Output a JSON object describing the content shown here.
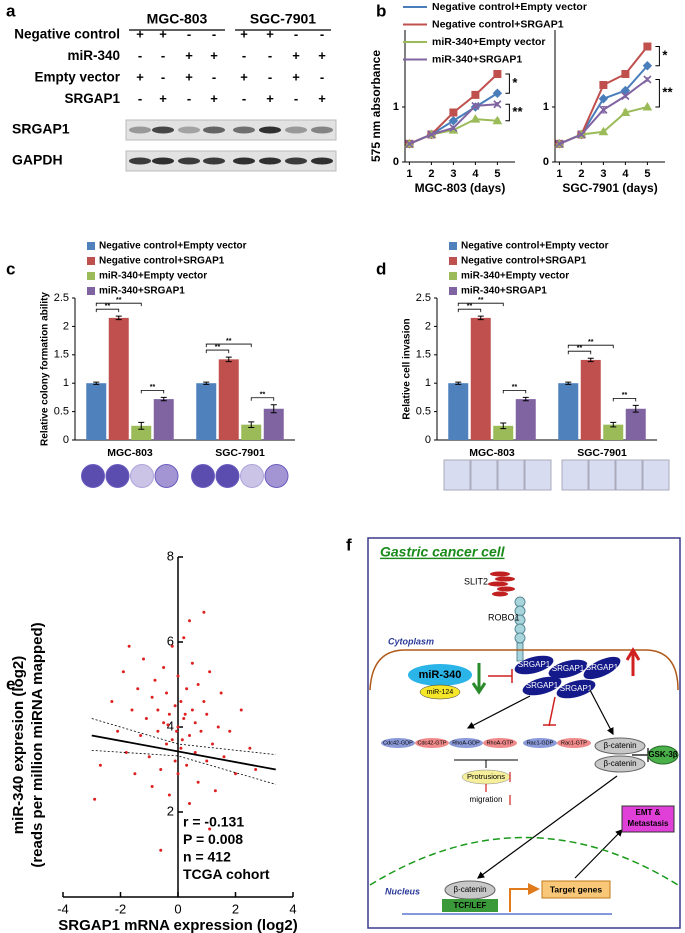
{
  "panel_labels": [
    "a",
    "b",
    "c",
    "d",
    "e",
    "f"
  ],
  "blot": {
    "cell_lines": [
      "MGC-803",
      "SGC-7901"
    ],
    "conditions": [
      {
        "label": "Negative control",
        "signs": [
          "+",
          "+",
          "-",
          "-",
          "+",
          "+",
          "-",
          "-"
        ]
      },
      {
        "label": "miR-340",
        "signs": [
          "-",
          "-",
          "+",
          "+",
          "-",
          "-",
          "+",
          "+"
        ]
      },
      {
        "label": "Empty vector",
        "signs": [
          "+",
          "-",
          "+",
          "-",
          "+",
          "-",
          "+",
          "-"
        ]
      },
      {
        "label": "SRGAP1",
        "signs": [
          "-",
          "+",
          "-",
          "+",
          "-",
          "+",
          "-",
          "+"
        ]
      }
    ],
    "bands": [
      "SRGAP1",
      "GAPDH"
    ]
  },
  "chart_data": [
    {
      "type": "line",
      "xlabel": "MGC-803 (days)",
      "ylabel": "575 nm absorbance",
      "x": [
        1,
        2,
        3,
        4,
        5
      ],
      "xlim": [
        0.8,
        5.8
      ],
      "xticks": [
        1,
        2,
        3,
        4,
        5
      ],
      "ylim": [
        0,
        2.4
      ],
      "yticks": [
        0,
        1
      ],
      "legend": "top",
      "series": [
        {
          "name": "Negative control+Empty vector",
          "color": "#4a7ebb",
          "values": [
            0.33,
            0.5,
            0.75,
            1.0,
            1.25
          ],
          "errors": [
            0.02,
            0.02,
            0.04,
            0.04,
            0.05
          ]
        },
        {
          "name": "Negative control+SRGAP1",
          "color": "#c0504d",
          "values": [
            0.33,
            0.5,
            0.9,
            1.22,
            1.6
          ],
          "errors": [
            0.02,
            0.02,
            0.06,
            0.04,
            0.03
          ]
        },
        {
          "name": "miR-340+Empty vector",
          "color": "#9bbb59",
          "values": [
            0.33,
            0.5,
            0.58,
            0.78,
            0.75
          ],
          "errors": [
            0.02,
            0.02,
            0.03,
            0.03,
            0.04
          ]
        },
        {
          "name": "miR-340+SRGAP1",
          "color": "#8064a2",
          "values": [
            0.33,
            0.5,
            0.62,
            1.02,
            1.05
          ],
          "errors": [
            0.02,
            0.02,
            0.03,
            0.04,
            0.03
          ]
        }
      ],
      "significance": [
        "*",
        "**"
      ]
    },
    {
      "type": "line",
      "xlabel": "SGC-7901 (days)",
      "x": [
        1,
        2,
        3,
        4,
        5
      ],
      "xlim": [
        0.8,
        5.8
      ],
      "xticks": [
        1,
        2,
        3,
        4,
        5
      ],
      "ylim": [
        0,
        2.4
      ],
      "yticks": [
        0,
        1
      ],
      "series": [
        {
          "color": "#4a7ebb",
          "values": [
            0.33,
            0.5,
            1.15,
            1.3,
            1.75
          ],
          "errors": [
            0.02,
            0.02,
            0.04,
            0.03,
            0.03
          ]
        },
        {
          "color": "#c0504d",
          "values": [
            0.33,
            0.5,
            1.4,
            1.6,
            2.1
          ],
          "errors": [
            0.02,
            0.02,
            0.05,
            0.03,
            0.03
          ]
        },
        {
          "color": "#9bbb59",
          "values": [
            0.33,
            0.5,
            0.55,
            0.9,
            1.0
          ],
          "errors": [
            0.02,
            0.02,
            0.03,
            0.05,
            0.03
          ]
        },
        {
          "color": "#8064a2",
          "values": [
            0.33,
            0.5,
            0.95,
            1.2,
            1.5
          ],
          "errors": [
            0.02,
            0.02,
            0.06,
            0.03,
            0.03
          ]
        }
      ],
      "significance": [
        "*",
        "**"
      ]
    },
    {
      "type": "bar",
      "ylabel": "Relative colony formation ability",
      "categories": [
        "MGC-803",
        "SGC-7901"
      ],
      "ylim": [
        0,
        2.5
      ],
      "yticks": [
        0,
        0.5,
        1,
        1.5,
        2,
        2.5
      ],
      "legend": "top",
      "series": [
        {
          "name": "Negative control+Empty vector",
          "color": "#4f81bd",
          "values": [
            1,
            1
          ],
          "errors": [
            0.02,
            0.02
          ]
        },
        {
          "name": "Negative control+SRGAP1",
          "color": "#c0504d",
          "values": [
            2.15,
            1.42
          ],
          "errors": [
            0.03,
            0.04
          ]
        },
        {
          "name": "miR-340+Empty vector",
          "color": "#9bbb59",
          "values": [
            0.25,
            0.27
          ],
          "errors": [
            0.06,
            0.05
          ]
        },
        {
          "name": "miR-340+SRGAP1",
          "color": "#8064a2",
          "values": [
            0.72,
            0.55
          ],
          "errors": [
            0.03,
            0.07
          ]
        }
      ],
      "group_significance": [
        [
          "**",
          "**",
          "**"
        ],
        [
          "**",
          "**",
          "**"
        ]
      ]
    },
    {
      "type": "bar",
      "ylabel": "Relative cell invasion",
      "categories": [
        "MGC-803",
        "SGC-7901"
      ],
      "ylim": [
        0,
        2.5
      ],
      "yticks": [
        0,
        0.5,
        1,
        1.5,
        2,
        2.5
      ],
      "legend": "top",
      "series": [
        {
          "name": "Negative control+Empty vector",
          "color": "#4f81bd",
          "values": [
            1,
            1
          ],
          "errors": [
            0.02,
            0.02
          ]
        },
        {
          "name": "Negative control+SRGAP1",
          "color": "#c0504d",
          "values": [
            2.15,
            1.41
          ],
          "errors": [
            0.03,
            0.03
          ]
        },
        {
          "name": "miR-340+Empty vector",
          "color": "#9bbb59",
          "values": [
            0.25,
            0.27
          ],
          "errors": [
            0.05,
            0.04
          ]
        },
        {
          "name": "miR-340+SRGAP1",
          "color": "#8064a2",
          "values": [
            0.72,
            0.55
          ],
          "errors": [
            0.03,
            0.06
          ]
        }
      ],
      "group_significance": [
        [
          "**",
          "**",
          "**"
        ],
        [
          "**",
          "**",
          "**"
        ]
      ]
    },
    {
      "type": "scatter",
      "xlabel": "SRGAP1 mRNA expression (log2)",
      "ylabel": [
        "miR-340 expresion (log2)",
        "(reads per million miRNA mapped)"
      ],
      "xlim": [
        -4,
        4
      ],
      "xticks": [
        -4,
        -2,
        0,
        2,
        4
      ],
      "ylim": [
        0,
        8
      ],
      "yticks": [
        2,
        4,
        6,
        8
      ],
      "color": "#e02020",
      "x": [
        -2.7,
        -2.3,
        -2.1,
        -1.9,
        -1.8,
        -1.6,
        -1.5,
        -1.4,
        -1.3,
        -1.2,
        -1.1,
        -1.0,
        -0.9,
        -0.9,
        -0.8,
        -0.7,
        -0.7,
        -0.6,
        -0.5,
        -0.5,
        -0.4,
        -0.4,
        -0.3,
        -0.3,
        -0.2,
        -0.2,
        -0.1,
        -0.1,
        0.0,
        0.0,
        0.0,
        0.1,
        0.1,
        0.2,
        0.2,
        0.3,
        0.3,
        0.4,
        0.4,
        0.5,
        0.5,
        0.6,
        0.6,
        0.7,
        0.7,
        0.8,
        0.9,
        1.0,
        1.0,
        1.1,
        1.2,
        1.3,
        1.4,
        1.5,
        1.6,
        1.8,
        2.0,
        2.2,
        2.5,
        -0.6,
        1.1,
        -2.9,
        2.7,
        0.9,
        -1.7,
        0.4,
        -0.05,
        0.15,
        -0.35,
        0.25
      ],
      "y": [
        3.1,
        4.6,
        3.9,
        5.3,
        3.4,
        4.4,
        2.9,
        4.9,
        3.8,
        5.6,
        4.2,
        3.3,
        4.7,
        2.6,
        5.1,
        3.9,
        4.4,
        3.0,
        5.4,
        4.1,
        3.6,
        4.8,
        2.4,
        4.3,
        5.9,
        3.7,
        4.5,
        3.2,
        4.0,
        5.2,
        2.9,
        4.6,
        3.5,
        6.1,
        4.2,
        3.1,
        4.9,
        3.8,
        2.2,
        4.4,
        5.5,
        3.4,
        4.1,
        2.7,
        5.0,
        3.9,
        4.6,
        3.2,
        4.3,
        5.3,
        3.6,
        2.5,
        4.0,
        4.8,
        3.3,
        3.9,
        2.9,
        4.4,
        3.5,
        1.1,
        1.6,
        2.3,
        3.0,
        6.7,
        5.9,
        6.5,
        3.9,
        3.7,
        4.05,
        4.3
      ],
      "fit": {
        "x": [
          -3,
          3.4
        ],
        "y": [
          3.8,
          3.0
        ]
      },
      "ci_upper": {
        "x": [
          -3,
          0,
          3.4
        ],
        "y": [
          4.2,
          3.6,
          3.35
        ]
      },
      "ci_lower": {
        "x": [
          -3,
          0,
          3.4
        ],
        "y": [
          3.45,
          3.32,
          2.65
        ]
      },
      "annotations": [
        "r = -0.131",
        "P = 0.008",
        "n = 412",
        "TCGA cohort"
      ]
    }
  ],
  "diagram": {
    "title": "Gastric cancer cell",
    "ligand": "SLIT2",
    "receptor": "ROBO1",
    "compartments": [
      "Cytoplasm",
      "Nucleus"
    ],
    "mirnas": [
      "miR-340",
      "miR-124"
    ],
    "complex": [
      "SRGAP1",
      "SRGAP1",
      "SRGAP1",
      "SRGAP1",
      "SRGAP1"
    ],
    "gtpases": [
      "Cdc42-GDP",
      "Cdc42-GTP",
      "RhoA-GDP",
      "RhoA-GTP",
      "Rac1-GDP",
      "Rac1-GTP"
    ],
    "protrusions": "Protrusions",
    "migration": "migration",
    "beta_catenin": [
      "β-catenin",
      "β-catenin",
      "β-catenin"
    ],
    "gsk": "GSK-3β",
    "emt": [
      "EMT &",
      "Metastasis"
    ],
    "tcf": "TCF/LEF",
    "target": "Target genes"
  }
}
